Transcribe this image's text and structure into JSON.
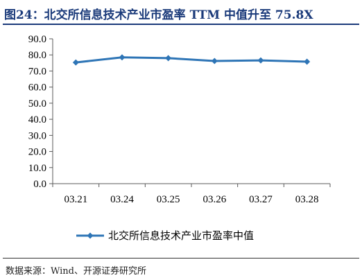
{
  "figure": {
    "title": "图24：北交所信息技术产业市盈率 TTM 中值升至 75.8X",
    "source": "数据来源：Wind、开源证券研究所"
  },
  "colors": {
    "title": "#1a3a7a",
    "series": "#2e75b6",
    "axis": "#595959"
  },
  "chart_data": {
    "type": "line",
    "categories": [
      "03.21",
      "03.24",
      "03.25",
      "03.26",
      "03.27",
      "03.28"
    ],
    "series": [
      {
        "name": "北交所信息技术产业市盈率中值",
        "values": [
          75.3,
          78.5,
          78.0,
          76.2,
          76.6,
          75.8
        ]
      }
    ],
    "ylim": [
      0,
      90
    ],
    "yticks": [
      "0.0",
      "10.0",
      "20.0",
      "30.0",
      "40.0",
      "50.0",
      "60.0",
      "70.0",
      "80.0",
      "90.0"
    ],
    "grid": false,
    "legend": "bottom"
  }
}
